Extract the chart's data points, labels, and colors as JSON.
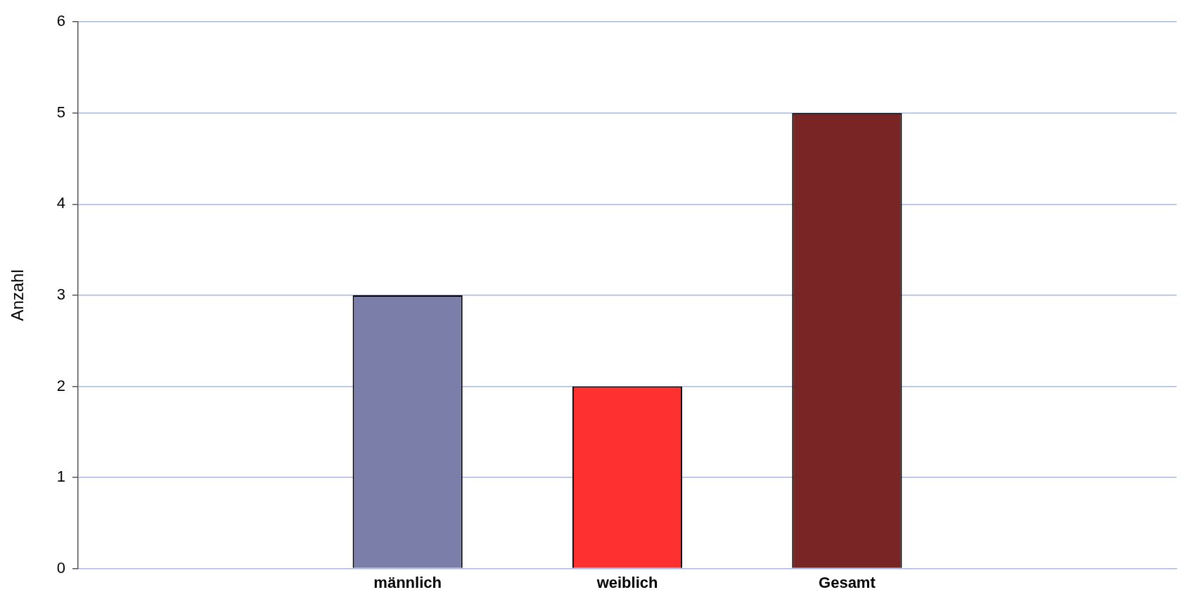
{
  "chart_data": {
    "type": "bar",
    "ylabel": "Anzahl",
    "categories": [
      null,
      "männlich",
      "weiblich",
      "Gesamt",
      null
    ],
    "values": [
      null,
      3,
      2,
      5,
      null
    ],
    "colors": [
      "#7a7ea8",
      "#7a7ea8",
      "#ff3030",
      "#7a2525",
      "#7a2525"
    ],
    "ylim": [
      0,
      6
    ],
    "yticks": [
      0,
      1,
      2,
      3,
      4,
      5,
      6
    ],
    "grid": "y",
    "legend": false
  }
}
